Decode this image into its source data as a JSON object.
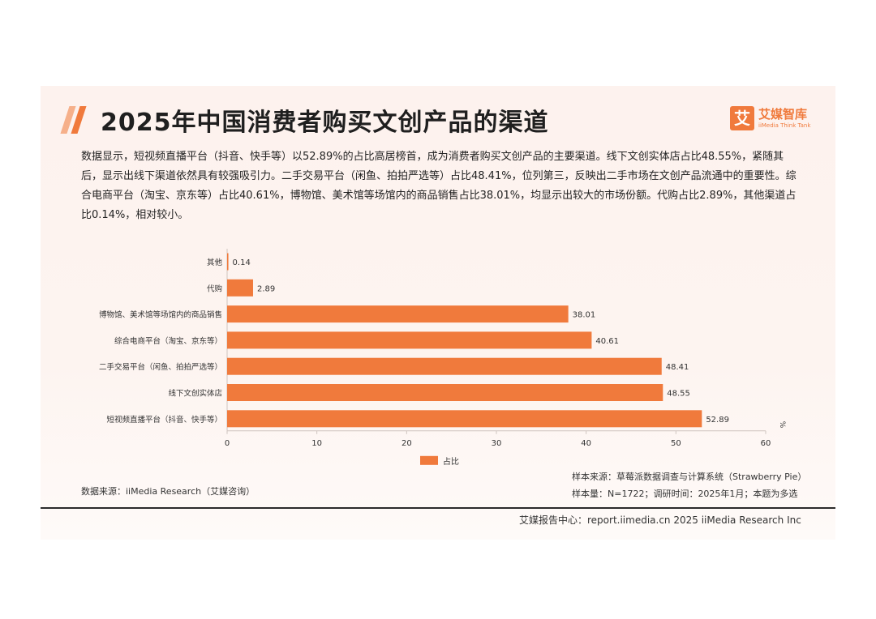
{
  "header": {
    "title": "2025年中国消费者购买文创产品的渠道",
    "logo_mark": "艾",
    "logo_cn": "艾媒智库",
    "logo_en": "iiMedia Think Tank"
  },
  "summary": "数据显示，短视频直播平台（抖音、快手等）以52.89%的占比高居榜首，成为消费者购买文创产品的主要渠道。线下文创实体店占比48.55%，紧随其后，显示出线下渠道依然具有较强吸引力。二手交易平台（闲鱼、拍拍严选等）占比48.41%，位列第三，反映出二手市场在文创产品流通中的重要性。综合电商平台（淘宝、京东等）占比40.61%，博物馆、美术馆等场馆内的商品销售占比38.01%，均显示出较大的市场份额。代购占比2.89%，其他渠道占比0.14%，相对较小。",
  "chart_data": {
    "type": "bar",
    "orientation": "horizontal",
    "categories": [
      "其他",
      "代购",
      "博物馆、美术馆等场馆内的商品销售",
      "综合电商平台（淘宝、京东等）",
      "二手交易平台（闲鱼、拍拍严选等）",
      "线下文创实体店",
      "短视频直播平台（抖音、快手等）"
    ],
    "series": [
      {
        "name": "占比",
        "values": [
          0.14,
          2.89,
          38.01,
          40.61,
          48.41,
          48.55,
          52.89
        ],
        "color": "#f07a3c"
      }
    ],
    "value_labels": [
      "0.14",
      "2.89",
      "38.01",
      "40.61",
      "48.41",
      "48.55",
      "52.89"
    ],
    "xlim": [
      0,
      60
    ],
    "xticks": [
      "0",
      "10",
      "20",
      "30",
      "40",
      "50",
      "60"
    ],
    "unit": "%",
    "legend_position": "bottom",
    "grid": false
  },
  "sources": {
    "left": "数据来源：iiMedia Research（艾媒咨询）",
    "sample_source": "样本来源：草莓派数据调查与计算系统（Strawberry Pie）",
    "sample_size": "样本量：N=1722；调研时间：2025年1月；本题为多选"
  },
  "footer": "艾媒报告中心：report.iimedia.cn 2025 iiMedia Research Inc",
  "colors": {
    "accent": "#f07a3c",
    "background": "#fdf2ee"
  }
}
